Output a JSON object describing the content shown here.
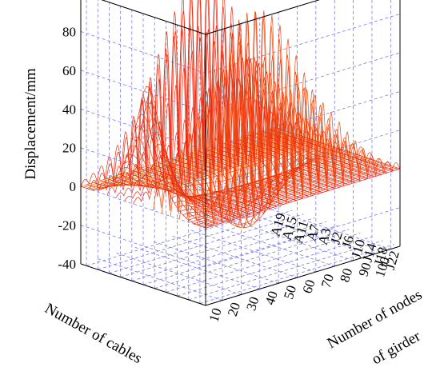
{
  "chart_data": {
    "type": "surface-3d-wireframe",
    "zlabel": "Displacement/mm",
    "xlabel": "Number of cables",
    "ylabel": [
      "Number of nodes",
      "of girder"
    ],
    "z_ticks": [
      "100",
      "80",
      "60",
      "40",
      "20",
      "0",
      "-20",
      "-40"
    ],
    "z_values": [
      100,
      80,
      60,
      40,
      20,
      0,
      -20,
      -40
    ],
    "zlim": [
      -40,
      100
    ],
    "cable_ticks": [
      "A19",
      "A15",
      "A11",
      "A7",
      "A3",
      "J2",
      "J6",
      "J10",
      "J14",
      "J18",
      "J22"
    ],
    "node_ticks": [
      "10",
      "20",
      "30",
      "40",
      "50",
      "60",
      "70",
      "80",
      "90",
      "100"
    ],
    "node_range": [
      1,
      105
    ],
    "grid": true,
    "colors": {
      "wire_light": "#ff9a00",
      "wire_dark": "#dd0000",
      "grid": "#7a7ae6"
    }
  }
}
